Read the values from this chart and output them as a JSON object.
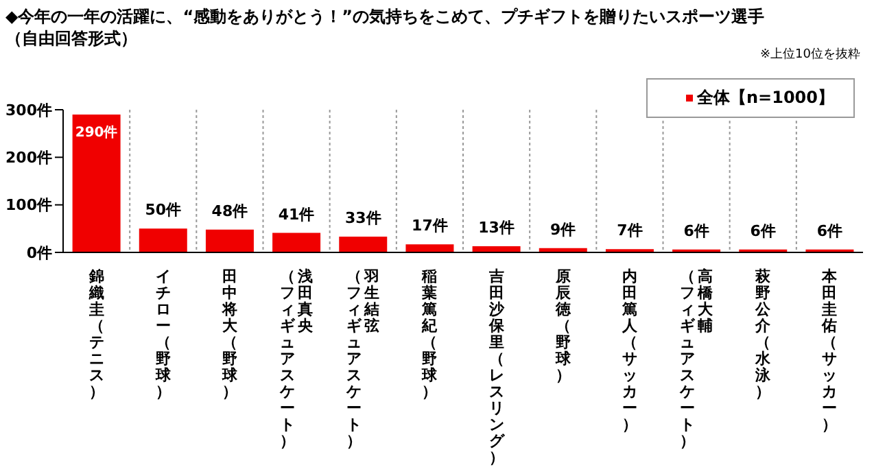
{
  "chart_data": {
    "type": "bar",
    "title": "◆今年の一年の活躍に、“感動をありがとう！”の気持ちをこめて、プチギフトを贈りたいスポーツ選手",
    "subtitle": "（自由回答形式）",
    "annotations": [
      "※上位10位を抜粋"
    ],
    "categories": [
      "錦織圭（テニス）",
      "イチロー（野球）",
      "田中将大（野球）",
      "浅田真央（フィギュアスケート）",
      "羽生結弦（フィギュアスケート）",
      "稲葉篤紀（野球）",
      "吉田沙保里（レスリング）",
      "原辰徳（野球）",
      "内田篤人（サッカー）",
      "高橋大輔（フィギュアスケート）",
      "萩野公介（水泳）",
      "本田圭佑（サッカー）"
    ],
    "series": [
      {
        "name": "全体【n=1000】",
        "color": "#f00000",
        "values": [
          290,
          50,
          48,
          41,
          33,
          17,
          13,
          9,
          7,
          6,
          6,
          6
        ],
        "value_labels": [
          "290件",
          "50件",
          "48件",
          "41件",
          "33件",
          "17件",
          "13件",
          "9件",
          "7件",
          "6件",
          "6件",
          "6件"
        ]
      }
    ],
    "ylim": [
      0,
      300
    ],
    "yticks": [
      {
        "value": 0,
        "label": "0件"
      },
      {
        "value": 100,
        "label": "100件"
      },
      {
        "value": 200,
        "label": "200件"
      },
      {
        "value": 300,
        "label": "300件"
      }
    ],
    "grid": "x",
    "legend": "top right"
  }
}
